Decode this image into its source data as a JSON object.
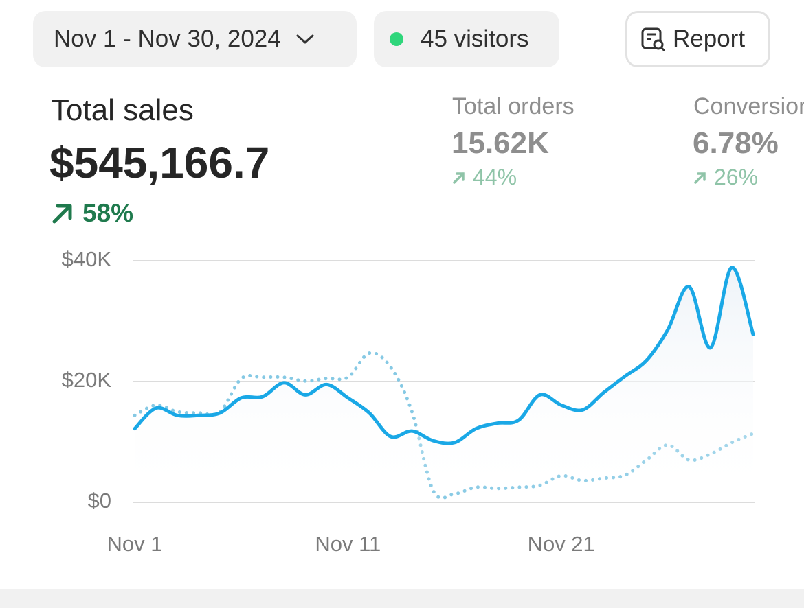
{
  "header": {
    "date_range": "Nov 1 - Nov 30, 2024",
    "visitors": "45 visitors",
    "report_button": "Report"
  },
  "metrics": [
    {
      "label": "Total sales",
      "value": "$545,166.7",
      "change": "58%"
    },
    {
      "label": "Total orders",
      "value": "15.62K",
      "change": "44%"
    },
    {
      "label": "Conversion",
      "value": "6.78%",
      "change": "26%"
    }
  ],
  "chart_data": {
    "type": "line",
    "categories": [
      "Nov 1",
      null,
      null,
      null,
      null,
      null,
      null,
      null,
      null,
      null,
      "Nov 11",
      null,
      null,
      null,
      null,
      null,
      null,
      null,
      null,
      null,
      "Nov 21",
      null,
      null,
      null,
      null,
      null,
      null,
      null,
      null,
      null
    ],
    "series": [
      {
        "color": "#1aa8e6",
        "style": "solid",
        "fill": true,
        "values": [
          12200,
          15600,
          14400,
          14400,
          14800,
          17300,
          17500,
          19800,
          17800,
          19500,
          17300,
          14800,
          10900,
          11800,
          10200,
          9900,
          12200,
          13100,
          13600,
          17800,
          16100,
          15300,
          18200,
          20900,
          23500,
          28600,
          35700,
          25600,
          38900,
          27800
        ]
      },
      {
        "color": "#86c9e4",
        "style": "dotted",
        "fill": false,
        "values": [
          14400,
          16100,
          15000,
          14800,
          15000,
          20500,
          20700,
          20700,
          20100,
          20500,
          20700,
          24700,
          22400,
          15000,
          1900,
          1400,
          2500,
          2300,
          2500,
          2800,
          4400,
          3600,
          4000,
          4500,
          7000,
          9500,
          7000,
          8000,
          9900,
          11400
        ]
      }
    ],
    "ylim": [
      0,
      40000
    ],
    "yticks": [
      {
        "value": 0,
        "label": "$0"
      },
      {
        "value": 20000,
        "label": "$20K"
      },
      {
        "value": 40000,
        "label": "$40K"
      }
    ],
    "grid": true
  }
}
